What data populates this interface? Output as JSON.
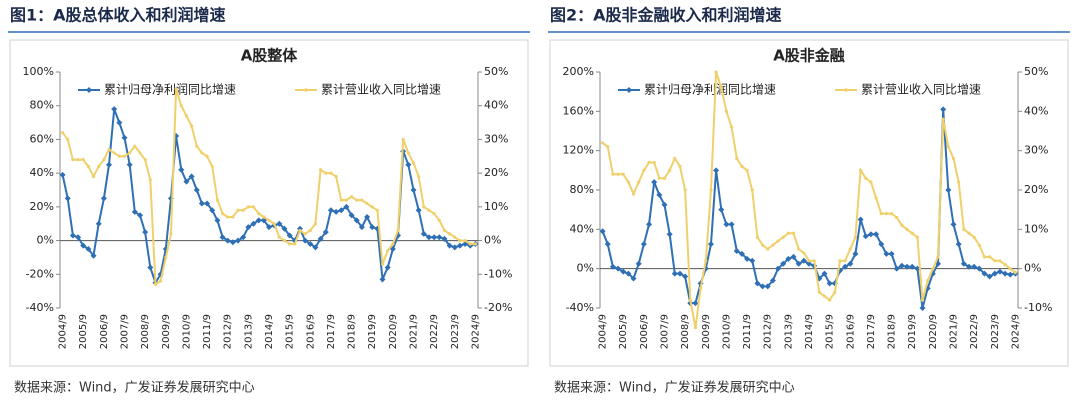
{
  "chart_data": [
    {
      "type": "line",
      "figure_title": "图1：A股总体收入和利润增速",
      "title": "A股整体",
      "source": "数据来源：Wind，广发证券发展研究中心",
      "categories": [
        "2004/9",
        null,
        null,
        null,
        "2005/9",
        null,
        null,
        null,
        "2006/9",
        null,
        null,
        null,
        "2007/9",
        null,
        null,
        null,
        "2008/9",
        null,
        null,
        null,
        "2009/9",
        null,
        null,
        null,
        "2010/9",
        null,
        null,
        null,
        "2011/9",
        null,
        null,
        null,
        "2012/9",
        null,
        null,
        null,
        "2013/9",
        null,
        null,
        null,
        "2014/9",
        null,
        null,
        null,
        "2015/9",
        null,
        null,
        null,
        "2016/9",
        null,
        null,
        null,
        "2017/9",
        null,
        null,
        null,
        "2018/9",
        null,
        null,
        null,
        "2019/9",
        null,
        null,
        null,
        "2020/9",
        null,
        null,
        null,
        "2021/9",
        null,
        null,
        null,
        "2022/9",
        null,
        null,
        null,
        "2023/9",
        null,
        null,
        null,
        "2024/9"
      ],
      "ylim": [
        -40,
        100
      ],
      "yticks": [
        {
          "value": -40,
          "label": "-40%"
        },
        {
          "value": -20,
          "label": "-20%"
        },
        {
          "value": 0,
          "label": "0%"
        },
        {
          "value": 20,
          "label": "20%"
        },
        {
          "value": 40,
          "label": "40%"
        },
        {
          "value": 60,
          "label": "60%"
        },
        {
          "value": 80,
          "label": "80%"
        },
        {
          "value": 100,
          "label": "100%"
        }
      ],
      "y2lim": [
        -20,
        50
      ],
      "y2ticks": [
        {
          "value": -20,
          "label": "-20%"
        },
        {
          "value": -10,
          "label": "-10%"
        },
        {
          "value": 0,
          "label": "0%"
        },
        {
          "value": 10,
          "label": "10%"
        },
        {
          "value": 20,
          "label": "20%"
        },
        {
          "value": 30,
          "label": "30%"
        },
        {
          "value": 40,
          "label": "40%"
        },
        {
          "value": 50,
          "label": "50%"
        }
      ],
      "series": [
        {
          "name": "累计归母净利润同比增速",
          "color": "#2e6fb5",
          "axis": "y",
          "values": [
            39,
            25,
            3,
            2,
            -3,
            -5,
            -9,
            10,
            25,
            45,
            78,
            70,
            61,
            45,
            17,
            15,
            5,
            -16,
            -25,
            -20,
            -5,
            25,
            62,
            42,
            35,
            38,
            30,
            22,
            22,
            18,
            12,
            2,
            0,
            -1,
            0,
            2,
            8,
            10,
            12,
            12,
            8,
            9,
            10,
            7,
            3,
            0,
            7,
            0,
            -2,
            -4,
            1,
            5,
            18,
            17,
            18,
            20,
            15,
            12,
            8,
            14,
            8,
            7,
            -23,
            -16,
            -5,
            3,
            53,
            45,
            30,
            18,
            4,
            2,
            2,
            2,
            1,
            -3,
            -4,
            -3,
            -2,
            -3,
            -2
          ]
        },
        {
          "name": "累计营业收入同比增速",
          "color": "#efd06a",
          "axis": "y2",
          "values": [
            32,
            30,
            24,
            24,
            24,
            22,
            19,
            22,
            24,
            27,
            26,
            25,
            25,
            26,
            28,
            26,
            24,
            18,
            -13,
            -12,
            -5,
            2,
            45,
            40,
            37,
            34,
            28,
            26,
            25,
            22,
            12,
            8,
            7,
            7,
            9,
            9,
            10,
            10,
            8,
            7,
            6,
            5,
            1,
            0,
            -1,
            -1,
            3,
            2,
            3,
            5,
            21,
            20,
            20,
            19,
            12,
            12,
            13,
            12,
            12,
            11,
            10,
            9,
            -7,
            -3,
            -1,
            3,
            30,
            26,
            23,
            19,
            10,
            9,
            8,
            6,
            3,
            2,
            1,
            0,
            0,
            -1,
            -1
          ]
        }
      ]
    },
    {
      "type": "line",
      "figure_title": "图2：A股非金融收入和利润增速",
      "title": "A股非金融",
      "source": "数据来源：Wind，广发证券发展研究中心",
      "categories": [
        "2004/9",
        null,
        null,
        null,
        "2005/9",
        null,
        null,
        null,
        "2006/9",
        null,
        null,
        null,
        "2007/9",
        null,
        null,
        null,
        "2008/9",
        null,
        null,
        null,
        "2009/9",
        null,
        null,
        null,
        "2010/9",
        null,
        null,
        null,
        "2011/9",
        null,
        null,
        null,
        "2012/9",
        null,
        null,
        null,
        "2013/9",
        null,
        null,
        null,
        "2014/9",
        null,
        null,
        null,
        "2015/9",
        null,
        null,
        null,
        "2016/9",
        null,
        null,
        null,
        "2017/9",
        null,
        null,
        null,
        "2018/9",
        null,
        null,
        null,
        "2019/9",
        null,
        null,
        null,
        "2020/9",
        null,
        null,
        null,
        "2021/9",
        null,
        null,
        null,
        "2022/9",
        null,
        null,
        null,
        "2023/9",
        null,
        null,
        null,
        "2024/9"
      ],
      "ylim": [
        -40,
        200
      ],
      "yticks": [
        {
          "value": -40,
          "label": "-40%"
        },
        {
          "value": 0,
          "label": "0%"
        },
        {
          "value": 40,
          "label": "40%"
        },
        {
          "value": 80,
          "label": "80%"
        },
        {
          "value": 120,
          "label": "120%"
        },
        {
          "value": 160,
          "label": "160%"
        },
        {
          "value": 200,
          "label": "200%"
        }
      ],
      "y2lim": [
        -10,
        50
      ],
      "y2ticks": [
        {
          "value": -10,
          "label": "-10%"
        },
        {
          "value": 0,
          "label": "0%"
        },
        {
          "value": 10,
          "label": "10%"
        },
        {
          "value": 20,
          "label": "20%"
        },
        {
          "value": 30,
          "label": "30%"
        },
        {
          "value": 40,
          "label": "40%"
        },
        {
          "value": 50,
          "label": "50%"
        }
      ],
      "series": [
        {
          "name": "累计归母净利润同比增速",
          "color": "#2e6fb5",
          "axis": "y",
          "values": [
            38,
            25,
            2,
            0,
            -3,
            -5,
            -10,
            5,
            25,
            45,
            88,
            75,
            65,
            35,
            -5,
            -5,
            -8,
            -35,
            -35,
            -15,
            0,
            25,
            100,
            60,
            45,
            45,
            18,
            15,
            10,
            8,
            -15,
            -18,
            -18,
            -12,
            0,
            5,
            10,
            12,
            5,
            8,
            5,
            3,
            -10,
            -5,
            -15,
            -15,
            -2,
            2,
            5,
            15,
            50,
            33,
            35,
            35,
            25,
            15,
            15,
            0,
            3,
            2,
            2,
            0,
            -40,
            -20,
            -5,
            5,
            162,
            80,
            45,
            25,
            5,
            2,
            2,
            0,
            -5,
            -8,
            -5,
            -3,
            -5,
            -6,
            -5
          ]
        },
        {
          "name": "累计营业收入同比增速",
          "color": "#efd06a",
          "axis": "y2",
          "values": [
            32,
            31,
            24,
            24,
            24,
            22,
            19,
            22,
            25,
            27,
            27,
            23,
            23,
            25,
            28,
            26,
            20,
            -8,
            -15,
            -5,
            2,
            20,
            50,
            46,
            40,
            36,
            28,
            26,
            25,
            20,
            8,
            6,
            5,
            6,
            7,
            8,
            9,
            9,
            5,
            4,
            2,
            2,
            -6,
            -7,
            -8,
            -6,
            2,
            2,
            5,
            8,
            25,
            23,
            22,
            18,
            14,
            14,
            14,
            13,
            11,
            10,
            9,
            8,
            -8,
            -3,
            0,
            3,
            38,
            31,
            28,
            22,
            10,
            9,
            8,
            6,
            3,
            3,
            2,
            2,
            1,
            0,
            -1
          ]
        }
      ]
    }
  ]
}
